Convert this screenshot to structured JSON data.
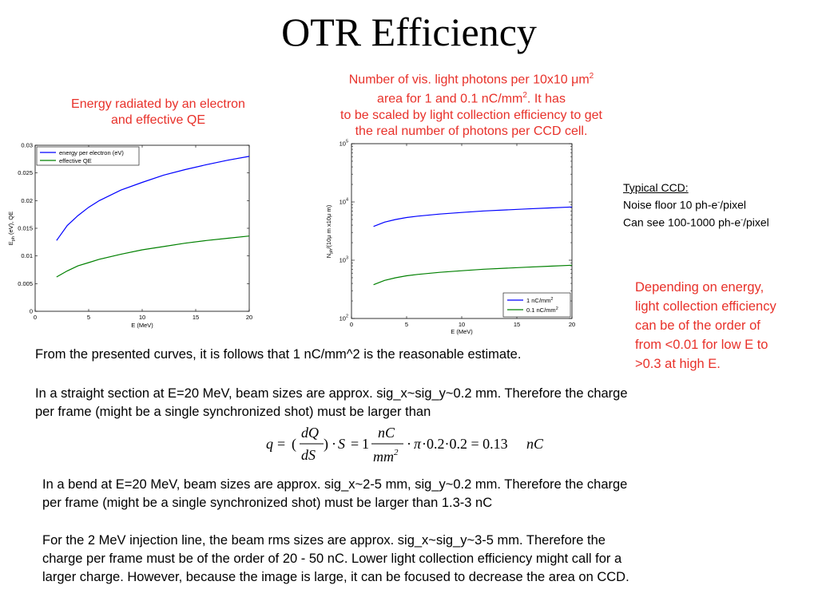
{
  "slide": {
    "title": "OTR Efficiency",
    "caption_left": [
      "Energy radiated by an electron",
      "and effective QE"
    ],
    "caption_right": {
      "line1": "Number of vis. light photons per 10x10 μm",
      "line1_sup": "2",
      "line2a": "area for 1 and 0.1 nC/mm",
      "line2_sup": "2",
      "line2b": ". It has",
      "line3": "to be scaled by light collection efficiency to get",
      "line4": "the real number of photons per CCD cell."
    },
    "typical_ccd": {
      "heading": "Typical CCD:",
      "noise_a": "Noise floor 10 ph-e",
      "noise_sup": "-",
      "noise_b": "/pixel",
      "see_a": "Can see 100-1000 ph-e",
      "see_sup": "-",
      "see_b": "/pixel"
    },
    "depending_note": [
      "Depending on energy,",
      "light collection efficiency",
      "can be of the order of",
      "from <0.01 for low E to",
      ">0.3 at high E."
    ],
    "paragraph1": "From the presented curves, it is follows that 1 nC/mm^2 is the reasonable estimate.",
    "paragraph2": [
      "In a straight section at E=20 MeV, beam sizes are approx. sig_x~sig_y~0.2 mm. Therefore the charge",
      "per frame (might be a single synchronized shot) must be larger than"
    ],
    "paragraph3": [
      "In a bend at E=20 MeV, beam sizes are approx. sig_x~2-5 mm, sig_y~0.2 mm. Therefore the charge",
      "per frame (might be a single synchronized shot) must be larger than 1.3-3 nC"
    ],
    "paragraph4": [
      "For the 2 MeV injection line, the beam rms sizes are approx. sig_x~sig_y~3-5 mm. Therefore the",
      "charge per frame must be of the order of 20 - 50 nC. Lower light collection efficiency might call for a",
      "larger charge. However, because the image is large, it can be focused to decrease the area on CCD."
    ],
    "equation": {
      "q": "q",
      "eq": "=",
      "dQ": "dQ",
      "dS": "dS",
      "dot1": "·",
      "S": "S",
      "eq2": "=",
      "one": "1",
      "nC": "nC",
      "mm": "mm",
      "mm_sup": "2",
      "dot2": "·",
      "pi": "π",
      "rest": "·0.2·0.2 = 0.13",
      "nC2": "nC"
    }
  },
  "colors": {
    "red_text": "#e8312a",
    "blue_series": "#0000ff",
    "green_series": "#008000"
  },
  "chart_data": [
    {
      "type": "line",
      "xlabel": "E (MeV)",
      "ylabel": "E_ph (eV), QE",
      "ylabel_main": "E",
      "ylabel_sub": "ph",
      "ylabel_rest": " (eV), QE",
      "xlim": [
        0,
        20
      ],
      "ylim": [
        0,
        0.03
      ],
      "xticks": [
        "0",
        "5",
        "10",
        "15",
        "20"
      ],
      "yticks": [
        "0",
        "0.005",
        "0.01",
        "0.015",
        "0.02",
        "0.025",
        "0.03"
      ],
      "legend_placement": "top-left",
      "series": [
        {
          "name": "energy per electron (eV)",
          "color": "#0000ff",
          "x": [
            2,
            3,
            4,
            5,
            6,
            8,
            10,
            12,
            14,
            16,
            18,
            20
          ],
          "y": [
            0.0128,
            0.0155,
            0.0173,
            0.0188,
            0.02,
            0.0219,
            0.0233,
            0.0246,
            0.0256,
            0.0265,
            0.0273,
            0.028
          ]
        },
        {
          "name": "effective QE",
          "color": "#008000",
          "x": [
            2,
            3,
            4,
            5,
            6,
            8,
            10,
            12,
            14,
            16,
            18,
            20
          ],
          "y": [
            0.0062,
            0.0073,
            0.0082,
            0.0088,
            0.0094,
            0.0103,
            0.0111,
            0.0117,
            0.0123,
            0.0128,
            0.0132,
            0.0136
          ]
        }
      ]
    },
    {
      "type": "line",
      "xlabel": "E (MeV)",
      "ylabel": "N_ph/(10μ m x10μ m)",
      "ylabel_main": "N",
      "ylabel_sub": "ph",
      "ylabel_rest": "/(10μ m x10μ m)",
      "yscale": "log",
      "xlim": [
        0,
        20
      ],
      "ylim": [
        100,
        100000
      ],
      "xticks": [
        "0",
        "5",
        "10",
        "15",
        "20"
      ],
      "yticks": [
        {
          "value": 100,
          "base": "10",
          "exp": "2"
        },
        {
          "value": 1000,
          "base": "10",
          "exp": "3"
        },
        {
          "value": 10000,
          "base": "10",
          "exp": "4"
        },
        {
          "value": 100000,
          "base": "10",
          "exp": "5"
        }
      ],
      "legend_placement": "bottom-right",
      "series": [
        {
          "name": "1 nC/mm",
          "name_sup": "2",
          "color": "#0000ff",
          "x": [
            2,
            3,
            4,
            5,
            6,
            8,
            10,
            12,
            14,
            16,
            18,
            20
          ],
          "y": [
            3800,
            4500,
            5000,
            5400,
            5700,
            6200,
            6600,
            7000,
            7300,
            7600,
            7900,
            8200
          ]
        },
        {
          "name": "0.1 nC/mm",
          "name_sup": "2",
          "color": "#008000",
          "x": [
            2,
            3,
            4,
            5,
            6,
            8,
            10,
            12,
            14,
            16,
            18,
            20
          ],
          "y": [
            380,
            450,
            500,
            540,
            570,
            620,
            660,
            700,
            730,
            760,
            790,
            820
          ]
        }
      ]
    }
  ]
}
